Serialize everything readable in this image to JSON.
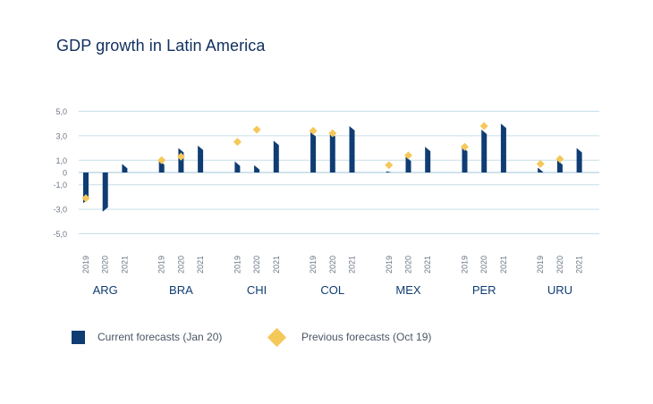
{
  "chart_data": {
    "type": "bar",
    "title": "GDP growth in Latin America",
    "ylim": [
      -5,
      5
    ],
    "yticks": [
      "5,0",
      "3,0",
      "1,0",
      "0",
      "-1,0",
      "-3,0",
      "-5,0"
    ],
    "ytick_values": [
      5,
      3,
      1,
      0,
      -1,
      -3,
      -5
    ],
    "years": [
      "2019",
      "2020",
      "2021"
    ],
    "countries": [
      "ARG",
      "BRA",
      "CHI",
      "COL",
      "MEX",
      "PER",
      "URU"
    ],
    "series": [
      {
        "name": "Current forecasts (Jan 20)",
        "values": {
          "ARG": [
            -2.5,
            -3.2,
            0.7
          ],
          "BRA": [
            1.0,
            2.0,
            2.2
          ],
          "CHI": [
            0.9,
            0.6,
            2.6
          ],
          "COL": [
            3.3,
            3.3,
            3.8
          ],
          "MEX": [
            0.1,
            1.3,
            2.1
          ],
          "PER": [
            2.1,
            3.5,
            4.0
          ],
          "URU": [
            0.4,
            1.0,
            2.0
          ]
        }
      },
      {
        "name": "Previous forecasts (Oct 19)",
        "values": {
          "ARG": [
            -2.1,
            null,
            null
          ],
          "BRA": [
            1.0,
            1.3,
            null
          ],
          "CHI": [
            2.5,
            3.5,
            null
          ],
          "COL": [
            3.4,
            3.2,
            null
          ],
          "MEX": [
            0.6,
            1.4,
            null
          ],
          "PER": [
            2.1,
            3.8,
            null
          ],
          "URU": [
            0.7,
            1.1,
            null
          ]
        }
      }
    ],
    "grid": true,
    "legend_position": "bottom-left"
  },
  "colors": {
    "current": "#0f3d73",
    "previous": "#f5c85a",
    "grid": "#c7dde9",
    "axis_text": "#6b7685",
    "category_text": "#0f3d73"
  }
}
